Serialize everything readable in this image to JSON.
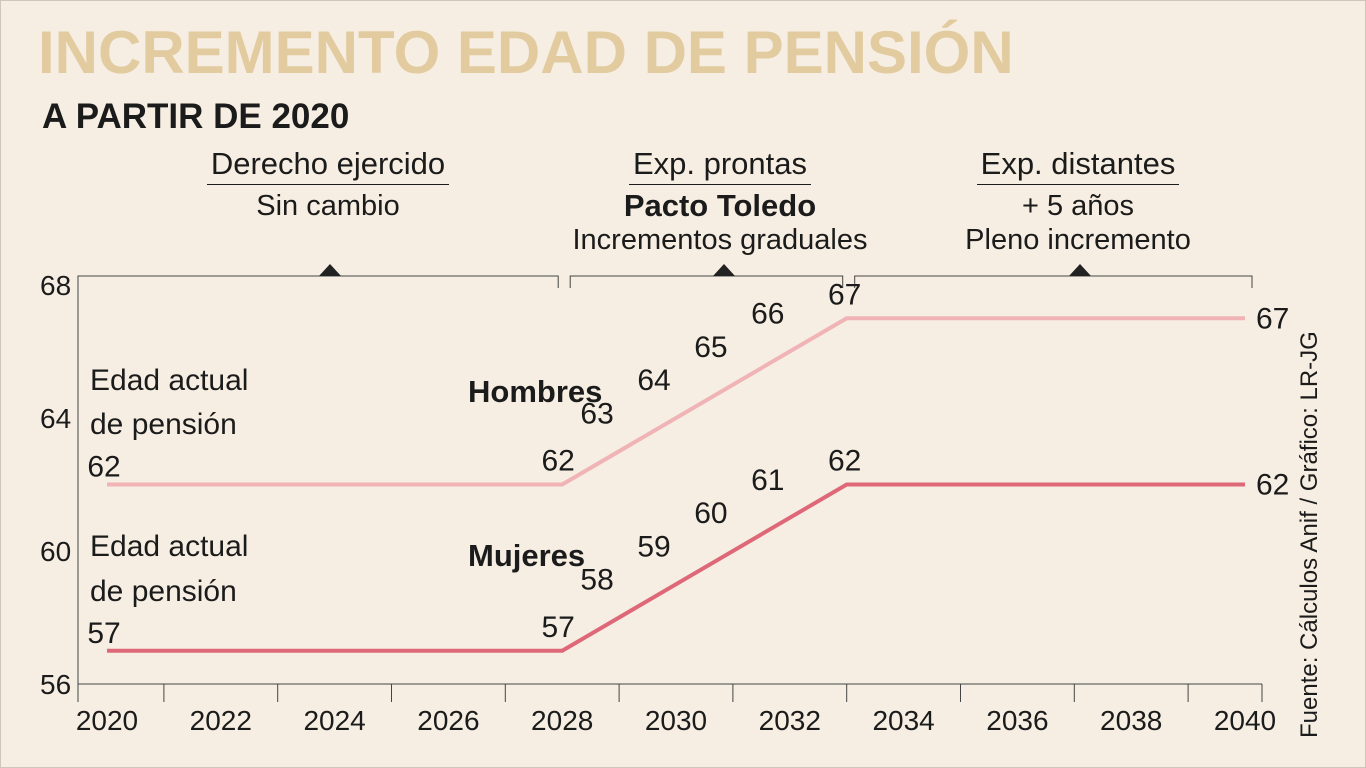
{
  "title": "INCREMENTO EDAD DE PENSIÓN",
  "subtitle": "A PARTIR DE 2020",
  "phases": [
    {
      "heading": "Derecho ejercido",
      "line1": "Sin cambio",
      "line2": ""
    },
    {
      "heading": "Exp. prontas",
      "line1": "Pacto Toledo",
      "line2": "Incrementos graduales"
    },
    {
      "heading": "Exp. distantes",
      "line1": "+ 5 años",
      "line2": "Pleno incremento"
    }
  ],
  "source": "Fuente: Cálculos Anif / Gráfico: LR-JG",
  "chart_data": {
    "type": "line",
    "title": "INCREMENTO EDAD DE PENSIÓN",
    "subtitle": "A PARTIR DE 2020",
    "xlim": [
      2020,
      2040
    ],
    "ylim": [
      56,
      68
    ],
    "x_ticks": [
      2020,
      2022,
      2024,
      2026,
      2028,
      2030,
      2032,
      2034,
      2036,
      2038,
      2040
    ],
    "y_ticks": [
      56,
      60,
      64,
      68
    ],
    "series": [
      {
        "name": "Hombres",
        "color": "#f0b3b6",
        "points": [
          [
            2020,
            62
          ],
          [
            2028,
            62
          ],
          [
            2033,
            67
          ],
          [
            2040,
            67
          ]
        ],
        "value_labels": [
          {
            "x": 2020,
            "y": 62,
            "text": "62"
          },
          {
            "x": 2028,
            "y": 62,
            "text": "62"
          },
          {
            "x": 2029,
            "y": 63,
            "text": "63"
          },
          {
            "x": 2030,
            "y": 64,
            "text": "64"
          },
          {
            "x": 2031,
            "y": 65,
            "text": "65"
          },
          {
            "x": 2032,
            "y": 66,
            "text": "66"
          },
          {
            "x": 2033,
            "y": 67,
            "text": "67"
          },
          {
            "x": 2040,
            "y": 67,
            "text": "67"
          }
        ]
      },
      {
        "name": "Mujeres",
        "color": "#de6878",
        "points": [
          [
            2020,
            57
          ],
          [
            2028,
            57
          ],
          [
            2033,
            62
          ],
          [
            2040,
            62
          ]
        ],
        "value_labels": [
          {
            "x": 2020,
            "y": 57,
            "text": "57"
          },
          {
            "x": 2028,
            "y": 57,
            "text": "57"
          },
          {
            "x": 2029,
            "y": 58,
            "text": "58"
          },
          {
            "x": 2030,
            "y": 59,
            "text": "59"
          },
          {
            "x": 2031,
            "y": 60,
            "text": "60"
          },
          {
            "x": 2032,
            "y": 61,
            "text": "61"
          },
          {
            "x": 2033,
            "y": 62,
            "text": "62"
          },
          {
            "x": 2040,
            "y": 62,
            "text": "62"
          }
        ]
      }
    ],
    "annotations": [
      {
        "text": "Edad actual",
        "series": "Hombres"
      },
      {
        "text": "de pensión",
        "series": "Hombres"
      },
      {
        "text": "Edad actual",
        "series": "Mujeres"
      },
      {
        "text": "de pensión",
        "series": "Mujeres"
      }
    ],
    "phase_brackets": [
      [
        2020,
        2028
      ],
      [
        2028,
        2033
      ],
      [
        2033,
        2040
      ]
    ]
  }
}
